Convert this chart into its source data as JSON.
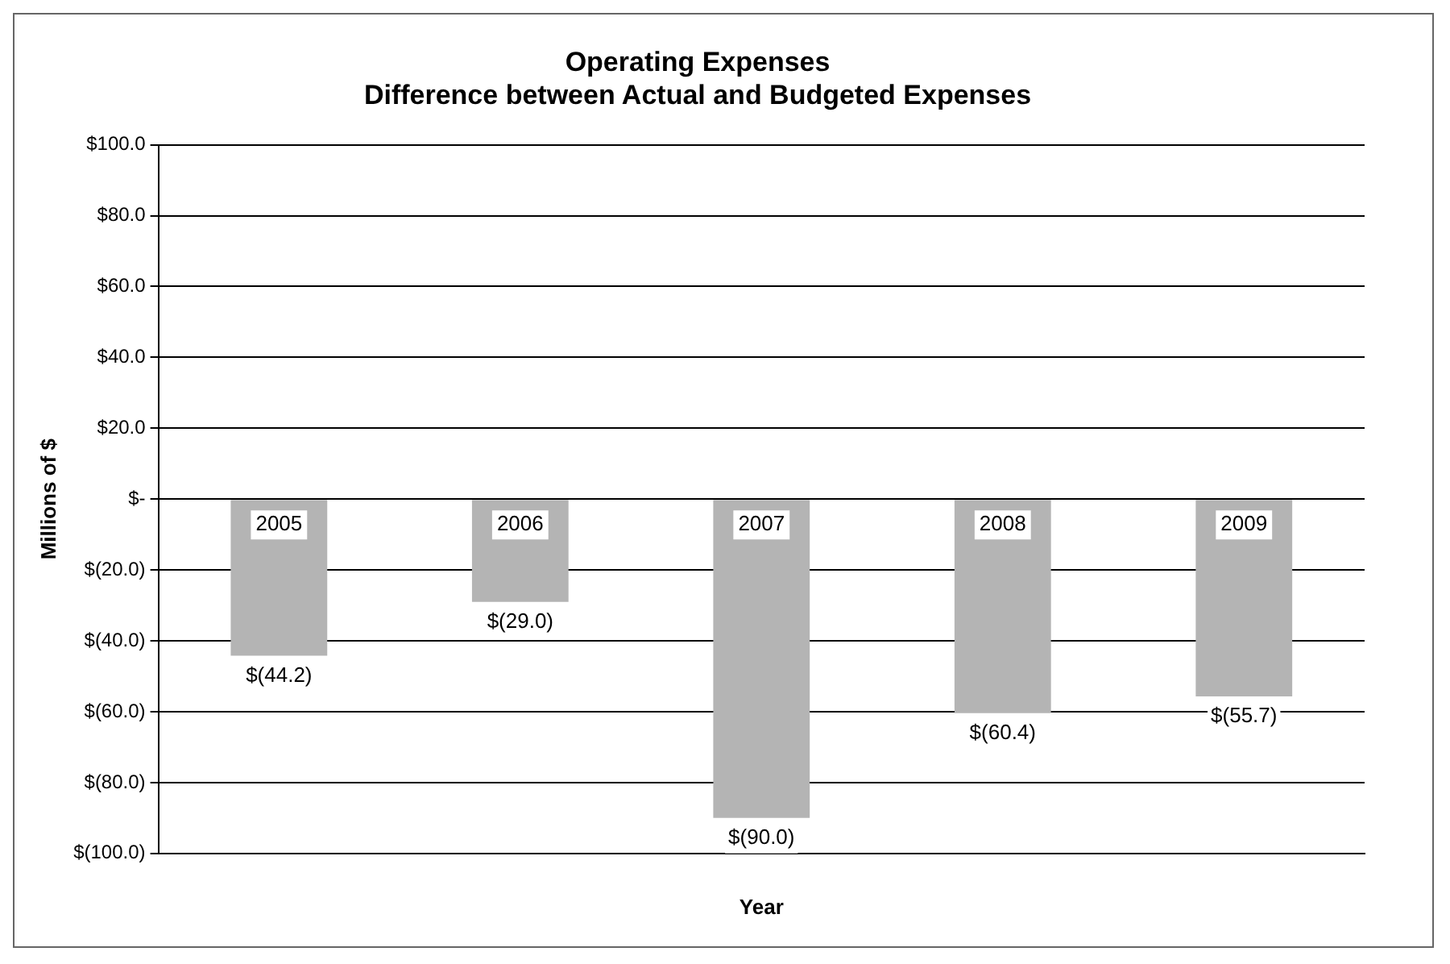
{
  "chart_data": {
    "type": "bar",
    "title": "Operating Expenses",
    "subtitle": "Difference between Actual and Budgeted Expenses",
    "xlabel": "Year",
    "ylabel": "Millions of $",
    "categories": [
      "2005",
      "2006",
      "2007",
      "2008",
      "2009"
    ],
    "values": [
      -44.2,
      -29.0,
      -90.0,
      -60.4,
      -55.7
    ],
    "value_labels": [
      "$(44.2)",
      "$(29.0)",
      "$(90.0)",
      "$(60.4)",
      "$(55.7)"
    ],
    "color": "#b4b4b4",
    "ylim": [
      -100,
      100
    ],
    "yticks": [
      {
        "value": 100,
        "label": "$100.0"
      },
      {
        "value": 80,
        "label": "$80.0"
      },
      {
        "value": 60,
        "label": "$60.0"
      },
      {
        "value": 40,
        "label": "$40.0"
      },
      {
        "value": 20,
        "label": "$20.0"
      },
      {
        "value": 0,
        "label": "$-"
      },
      {
        "value": -20,
        "label": "$(20.0)"
      },
      {
        "value": -40,
        "label": "$(40.0)"
      },
      {
        "value": -60,
        "label": "$(60.0)"
      },
      {
        "value": -80,
        "label": "$(80.0)"
      },
      {
        "value": -100,
        "label": "$(100.0)"
      }
    ],
    "grid": "y",
    "legend": false
  }
}
